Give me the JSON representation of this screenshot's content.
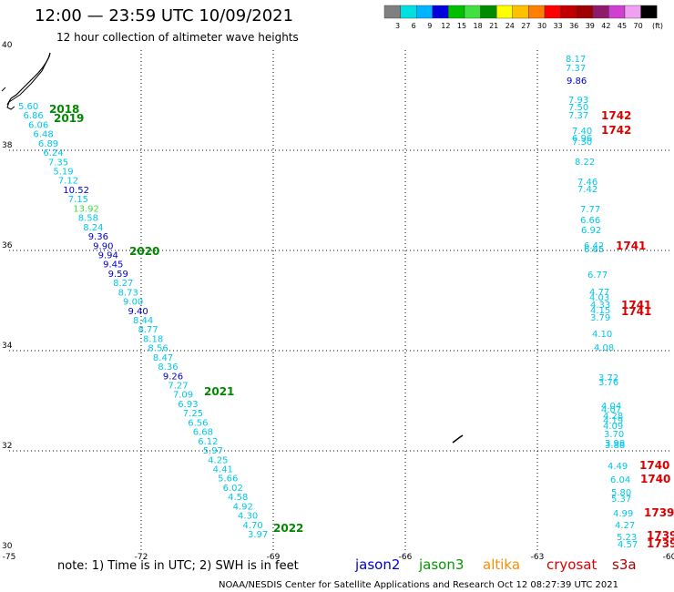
{
  "header": {
    "title": "12:00 — 23:59 UTC 10/09/2021",
    "subtitle": "12 hour collection of altimeter wave heights"
  },
  "legend": {
    "unit": "(ft)",
    "bins": [
      {
        "label": "3",
        "color": "#808080"
      },
      {
        "label": "6",
        "color": "#00e0e0"
      },
      {
        "label": "9",
        "color": "#00b4ff"
      },
      {
        "label": "12",
        "color": "#0000dd"
      },
      {
        "label": "15",
        "color": "#00c000"
      },
      {
        "label": "18",
        "color": "#40e040"
      },
      {
        "label": "21",
        "color": "#008c00"
      },
      {
        "label": "24",
        "color": "#ffff00"
      },
      {
        "label": "27",
        "color": "#ffc000"
      },
      {
        "label": "30",
        "color": "#ff8000"
      },
      {
        "label": "33",
        "color": "#ff0000"
      },
      {
        "label": "36",
        "color": "#c00000"
      },
      {
        "label": "39",
        "color": "#a00000"
      },
      {
        "label": "42",
        "color": "#901a6a"
      },
      {
        "label": "45",
        "color": "#d040d0"
      },
      {
        "label": "70",
        "color": "#f0a0f0"
      },
      {
        "label": "",
        "color": "#000000"
      }
    ]
  },
  "footer": {
    "note": "note: 1) Time is in UTC; 2) SWH is in feet",
    "satellites": [
      {
        "name": "jason2",
        "color": "#0000cc"
      },
      {
        "name": "jason3",
        "color": "#009900"
      },
      {
        "name": "altika",
        "color": "#ff8c00"
      },
      {
        "name": "cryosat",
        "color": "#dd0000"
      },
      {
        "name": "s3a",
        "color": "#aa0000"
      }
    ],
    "credit": "NOAA/NESDIS Center for Satellite Applications and Research    Oct 12 08:27:39 UTC 2021"
  },
  "chart_data": {
    "type": "scatter",
    "xlim": [
      -75,
      -60
    ],
    "ylim": [
      30,
      40
    ],
    "x_ticks": [
      "-75",
      "-72",
      "-69",
      "-66",
      "-63",
      "-60"
    ],
    "y_ticks": [
      "30",
      "32",
      "34",
      "36",
      "38",
      "40"
    ],
    "tracks": [
      {
        "points": [
          {
            "v": "5.60",
            "c": "#00c8e8"
          },
          {
            "v": "6.86",
            "c": "#00c8e8"
          },
          {
            "v": "6.06",
            "c": "#00c8e8"
          },
          {
            "v": "6.48",
            "c": "#00c8e8"
          },
          {
            "v": "6.89",
            "c": "#00c8e8"
          },
          {
            "v": "6.24",
            "c": "#00c8e8"
          },
          {
            "v": "7.35",
            "c": "#00c8e8"
          },
          {
            "v": "5.19",
            "c": "#00c8e8"
          },
          {
            "v": "7.12",
            "c": "#00c8e8"
          },
          {
            "v": "10.52",
            "c": "#0000cc"
          },
          {
            "v": "7.15",
            "c": "#00c8e8"
          },
          {
            "v": "13.92",
            "c": "#40e040"
          },
          {
            "v": "8.58",
            "c": "#00c8e8"
          },
          {
            "v": "8.24",
            "c": "#00c8e8"
          },
          {
            "v": "9.36",
            "c": "#0000cc"
          },
          {
            "v": "9.90",
            "c": "#0000cc"
          },
          {
            "v": "9.94",
            "c": "#0000cc"
          },
          {
            "v": "9.45",
            "c": "#0000cc"
          },
          {
            "v": "9.59",
            "c": "#0000cc"
          },
          {
            "v": "8.27",
            "c": "#00c8e8"
          },
          {
            "v": "8.73",
            "c": "#00c8e8"
          },
          {
            "v": "9.00",
            "c": "#00c8e8"
          },
          {
            "v": "9.40",
            "c": "#0000cc"
          },
          {
            "v": "8.44",
            "c": "#00c8e8"
          },
          {
            "v": "8.77",
            "c": "#00c8e8"
          },
          {
            "v": "8.18",
            "c": "#00c8e8"
          },
          {
            "v": "8.56",
            "c": "#00c8e8"
          },
          {
            "v": "8.47",
            "c": "#00c8e8"
          },
          {
            "v": "8.36",
            "c": "#00c8e8"
          },
          {
            "v": "9.26",
            "c": "#0000cc"
          },
          {
            "v": "7.27",
            "c": "#00c8e8"
          },
          {
            "v": "7.09",
            "c": "#00c8e8"
          },
          {
            "v": "6.93",
            "c": "#00c8e8"
          },
          {
            "v": "7.25",
            "c": "#00c8e8"
          },
          {
            "v": "6.56",
            "c": "#00c8e8"
          },
          {
            "v": "6.68",
            "c": "#00c8e8"
          },
          {
            "v": "6.12",
            "c": "#00c8e8"
          },
          {
            "v": "5.97",
            "c": "#00c8e8"
          },
          {
            "v": "4.25",
            "c": "#00c8e8"
          },
          {
            "v": "4.41",
            "c": "#00c8e8"
          },
          {
            "v": "5.66",
            "c": "#00c8e8"
          },
          {
            "v": "6.02",
            "c": "#00c8e8"
          },
          {
            "v": "4.58",
            "c": "#00c8e8"
          },
          {
            "v": "4.92",
            "c": "#00c8e8"
          },
          {
            "v": "4.30",
            "c": "#00c8e8"
          },
          {
            "v": "4.70",
            "c": "#00c8e8"
          },
          {
            "v": "3.97",
            "c": "#00c8e8"
          }
        ],
        "times": [
          {
            "label": "2018",
            "color": "#008800"
          },
          {
            "label": "2019",
            "color": "#008800"
          },
          {
            "label": "2020",
            "color": "#008800"
          },
          {
            "label": "2021",
            "color": "#008800"
          },
          {
            "label": "2022",
            "color": "#008800"
          }
        ]
      },
      {
        "points": [
          {
            "v": "8.17",
            "c": "#00c8e8"
          },
          {
            "v": "7.37",
            "c": "#00c8e8"
          },
          {
            "v": "9.86",
            "c": "#0000cc"
          },
          {
            "v": "7.93",
            "c": "#00c8e8"
          },
          {
            "v": "7.50",
            "c": "#00c8e8"
          },
          {
            "v": "7.37",
            "c": "#00c8e8"
          },
          {
            "v": "7.40",
            "c": "#00c8e8"
          },
          {
            "v": "6.96",
            "c": "#00c8e8"
          },
          {
            "v": "7.30",
            "c": "#00c8e8"
          },
          {
            "v": "8.22",
            "c": "#00c8e8"
          },
          {
            "v": "7.46",
            "c": "#00c8e8"
          },
          {
            "v": "7.42",
            "c": "#00c8e8"
          },
          {
            "v": "7.77",
            "c": "#00c8e8"
          },
          {
            "v": "6.66",
            "c": "#00c8e8"
          },
          {
            "v": "6.92",
            "c": "#00c8e8"
          },
          {
            "v": "6.42",
            "c": "#00c8e8"
          },
          {
            "v": "6.65",
            "c": "#00c8e8"
          },
          {
            "v": "6.77",
            "c": "#00c8e8"
          },
          {
            "v": "4.77",
            "c": "#00c8e8"
          },
          {
            "v": "4.03",
            "c": "#00c8e8"
          },
          {
            "v": "4.33",
            "c": "#00c8e8"
          },
          {
            "v": "4.15",
            "c": "#00c8e8"
          },
          {
            "v": "3.79",
            "c": "#00c8e8"
          },
          {
            "v": "4.10",
            "c": "#00c8e8"
          },
          {
            "v": "4.08",
            "c": "#00c8e8"
          },
          {
            "v": "3.72",
            "c": "#00c8e8"
          },
          {
            "v": "3.76",
            "c": "#00c8e8"
          },
          {
            "v": "4.04",
            "c": "#00c8e8"
          },
          {
            "v": "4.07",
            "c": "#00c8e8"
          },
          {
            "v": "4.28",
            "c": "#00c8e8"
          },
          {
            "v": "4.19",
            "c": "#00c8e8"
          },
          {
            "v": "4.09",
            "c": "#00c8e8"
          },
          {
            "v": "3.70",
            "c": "#00c8e8"
          },
          {
            "v": "3.98",
            "c": "#00c8e8"
          },
          {
            "v": "3.88",
            "c": "#00c8e8"
          },
          {
            "v": "4.49",
            "c": "#00c8e8"
          },
          {
            "v": "6.04",
            "c": "#00c8e8"
          },
          {
            "v": "5.80",
            "c": "#00c8e8"
          },
          {
            "v": "5.37",
            "c": "#00c8e8"
          },
          {
            "v": "4.99",
            "c": "#00c8e8"
          },
          {
            "v": "4.27",
            "c": "#00c8e8"
          },
          {
            "v": "5.23",
            "c": "#00c8e8"
          },
          {
            "v": "4.57",
            "c": "#00c8e8"
          }
        ],
        "times": [
          {
            "label": "1742",
            "color": "#dd0000"
          },
          {
            "label": "1742",
            "color": "#dd0000"
          },
          {
            "label": "1741",
            "color": "#dd0000"
          },
          {
            "label": "1741",
            "color": "#dd0000"
          },
          {
            "label": "1741",
            "color": "#dd0000"
          },
          {
            "label": "1740",
            "color": "#dd0000"
          },
          {
            "label": "1740",
            "color": "#dd0000"
          },
          {
            "label": "1739",
            "color": "#dd0000"
          },
          {
            "label": "1739",
            "color": "#dd0000"
          },
          {
            "label": "1739",
            "color": "#dd0000"
          }
        ]
      }
    ]
  }
}
